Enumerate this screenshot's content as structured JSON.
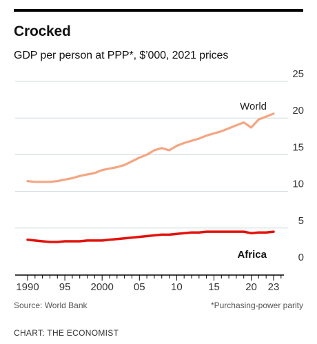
{
  "chart_data": {
    "type": "line",
    "title": "Crocked",
    "subtitle": "GDP per person at PPP*, $’000, 2021 prices",
    "xlabel": "",
    "ylabel": "",
    "xlim": [
      1990,
      2024
    ],
    "ylim": [
      0,
      25
    ],
    "y_ticks": [
      0,
      5,
      10,
      15,
      20,
      25
    ],
    "y_tick_labels": [
      "0",
      "5",
      "10",
      "15",
      "20",
      "25"
    ],
    "x_tick_labels": [
      {
        "value": 1990,
        "label": "1990"
      },
      {
        "value": 1995,
        "label": "95"
      },
      {
        "value": 2000,
        "label": "2000"
      },
      {
        "value": 2005,
        "label": "05"
      },
      {
        "value": 2010,
        "label": "10"
      },
      {
        "value": 2015,
        "label": "15"
      },
      {
        "value": 2020,
        "label": "20"
      },
      {
        "value": 2023,
        "label": "23"
      }
    ],
    "grid": true,
    "series": [
      {
        "name": "World",
        "color": "#f4a582",
        "x": [
          1990,
          1991,
          1992,
          1993,
          1994,
          1995,
          1996,
          1997,
          1998,
          1999,
          2000,
          2001,
          2002,
          2003,
          2004,
          2005,
          2006,
          2007,
          2008,
          2009,
          2010,
          2011,
          2012,
          2013,
          2014,
          2015,
          2016,
          2017,
          2018,
          2019,
          2020,
          2021,
          2022,
          2023
        ],
        "values": [
          11.4,
          11.3,
          11.3,
          11.3,
          11.4,
          11.6,
          11.8,
          12.1,
          12.3,
          12.5,
          12.9,
          13.1,
          13.3,
          13.6,
          14.1,
          14.6,
          15.0,
          15.6,
          15.9,
          15.6,
          16.2,
          16.6,
          16.9,
          17.2,
          17.6,
          17.9,
          18.2,
          18.6,
          19.0,
          19.4,
          18.7,
          19.8,
          20.2,
          20.6
        ]
      },
      {
        "name": "Africa",
        "color": "#e3120b",
        "x": [
          1990,
          1991,
          1992,
          1993,
          1994,
          1995,
          1996,
          1997,
          1998,
          1999,
          2000,
          2001,
          2002,
          2003,
          2004,
          2005,
          2006,
          2007,
          2008,
          2009,
          2010,
          2011,
          2012,
          2013,
          2014,
          2015,
          2016,
          2017,
          2018,
          2019,
          2020,
          2021,
          2022,
          2023
        ],
        "values": [
          3.4,
          3.3,
          3.2,
          3.1,
          3.1,
          3.2,
          3.2,
          3.2,
          3.3,
          3.3,
          3.3,
          3.4,
          3.5,
          3.6,
          3.7,
          3.8,
          3.9,
          4.0,
          4.1,
          4.1,
          4.2,
          4.3,
          4.4,
          4.4,
          4.5,
          4.5,
          4.5,
          4.5,
          4.5,
          4.5,
          4.3,
          4.4,
          4.4,
          4.5
        ]
      }
    ],
    "annotations": [
      {
        "text": "World",
        "series": "World"
      },
      {
        "text": "Africa",
        "series": "Africa"
      }
    ]
  },
  "footer": {
    "source": "Source: World Bank",
    "footnote": "*Purchasing-power parity",
    "credit": "CHART: THE ECONOMIST"
  }
}
